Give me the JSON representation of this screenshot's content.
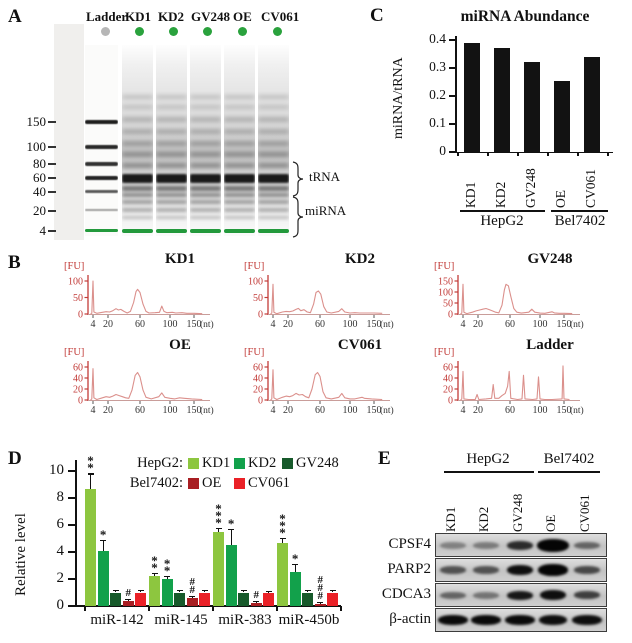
{
  "figure": {
    "colors": {
      "trace_red": "#d98a86",
      "axis_red": "#c23b38",
      "bar_black": "#121212",
      "sample_dot_green": "#2aa23d",
      "ladder_dot_gray": "#b6b6b6",
      "gel_marker_green": "#23993c"
    },
    "panel_a": {
      "label": "A",
      "unit": "[nt]",
      "lane_labels": [
        "Ladder",
        "KD1",
        "KD2",
        "GV248",
        "OE",
        "CV061"
      ],
      "markers": [
        150,
        100,
        80,
        60,
        40,
        20,
        4
      ],
      "trna_label": "tRNA",
      "mirna_label": "miRNA"
    },
    "panel_b": {
      "label": "B",
      "y_unit": "[FU]",
      "x_unit": "(nt)"
    },
    "panel_c": {
      "label": "C"
    },
    "panel_d": {
      "label": "D",
      "legend": {
        "hepg2_label": "HepG2:",
        "bel7402_label": "Bel7402:"
      }
    },
    "panel_e": {
      "label": "E",
      "groups": [
        {
          "name": "HepG2",
          "lanes": [
            "KD1",
            "KD2",
            "GV248"
          ]
        },
        {
          "name": "Bel7402",
          "lanes": [
            "OE",
            "CV061"
          ]
        }
      ],
      "lanes": [
        "KD1",
        "KD2",
        "GV248",
        "OE",
        "CV061"
      ],
      "proteins": [
        {
          "name": "CPSF4",
          "bands": [
            {
              "i": 0.35
            },
            {
              "i": 0.38
            },
            {
              "i": 0.8,
              "h": 9
            },
            {
              "i": 1.0,
              "h": 13,
              "w": 32
            },
            {
              "i": 0.5
            }
          ]
        },
        {
          "name": "PARP2",
          "bands": [
            {
              "i": 0.6,
              "h": 8
            },
            {
              "i": 0.6,
              "h": 8
            },
            {
              "i": 0.95,
              "h": 10
            },
            {
              "i": 1.0,
              "h": 12,
              "w": 30
            },
            {
              "i": 0.65,
              "h": 8
            }
          ]
        },
        {
          "name": "CDCA3",
          "bands": [
            {
              "i": 0.5
            },
            {
              "i": 0.42
            },
            {
              "i": 0.9,
              "h": 9
            },
            {
              "i": 0.95,
              "h": 10
            },
            {
              "i": 0.7,
              "h": 8
            }
          ]
        },
        {
          "name": "β-actin",
          "bands": [
            {
              "i": 0.97,
              "h": 10,
              "w": 30
            },
            {
              "i": 0.97,
              "h": 10,
              "w": 30
            },
            {
              "i": 0.97,
              "h": 10,
              "w": 30
            },
            {
              "i": 0.95,
              "h": 10,
              "w": 28
            },
            {
              "i": 0.95,
              "h": 10,
              "w": 30
            }
          ]
        }
      ]
    }
  },
  "chart_data": [
    {
      "panel": "B",
      "type": "line",
      "title": "KD1",
      "ylabel": "[FU]",
      "xlabel": "(nt)",
      "x_ticks": [
        4,
        20,
        60,
        100,
        150
      ],
      "y_ticks": [
        0,
        50,
        100
      ],
      "ylim": [
        0,
        110
      ],
      "trace": [
        [
          2,
          0
        ],
        [
          3,
          2
        ],
        [
          4,
          100
        ],
        [
          5,
          6
        ],
        [
          8,
          2
        ],
        [
          14,
          5
        ],
        [
          18,
          7
        ],
        [
          22,
          6
        ],
        [
          26,
          10
        ],
        [
          30,
          16
        ],
        [
          33,
          12
        ],
        [
          36,
          14
        ],
        [
          40,
          8
        ],
        [
          44,
          3
        ],
        [
          48,
          8
        ],
        [
          52,
          35
        ],
        [
          55,
          68
        ],
        [
          57,
          75
        ],
        [
          60,
          65
        ],
        [
          64,
          30
        ],
        [
          68,
          8
        ],
        [
          72,
          3
        ],
        [
          80,
          4
        ],
        [
          86,
          5
        ],
        [
          89,
          24
        ],
        [
          92,
          8
        ],
        [
          96,
          4
        ],
        [
          105,
          5
        ],
        [
          112,
          3
        ],
        [
          125,
          4
        ],
        [
          135,
          2
        ],
        [
          150,
          2
        ],
        [
          165,
          1
        ]
      ]
    },
    {
      "panel": "B",
      "type": "line",
      "title": "KD2",
      "ylabel": "[FU]",
      "xlabel": "(nt)",
      "x_ticks": [
        4,
        20,
        60,
        100,
        150
      ],
      "y_ticks": [
        0,
        50,
        100
      ],
      "ylim": [
        0,
        110
      ],
      "trace": [
        [
          2,
          0
        ],
        [
          3,
          3
        ],
        [
          4,
          90
        ],
        [
          5,
          5
        ],
        [
          8,
          1
        ],
        [
          14,
          6
        ],
        [
          18,
          8
        ],
        [
          22,
          7
        ],
        [
          26,
          9
        ],
        [
          30,
          14
        ],
        [
          33,
          17
        ],
        [
          36,
          10
        ],
        [
          40,
          13
        ],
        [
          44,
          6
        ],
        [
          48,
          4
        ],
        [
          52,
          30
        ],
        [
          55,
          65
        ],
        [
          58,
          70
        ],
        [
          61,
          60
        ],
        [
          65,
          22
        ],
        [
          69,
          6
        ],
        [
          75,
          3
        ],
        [
          85,
          8
        ],
        [
          89,
          16
        ],
        [
          93,
          6
        ],
        [
          100,
          3
        ],
        [
          110,
          4
        ],
        [
          120,
          3
        ],
        [
          135,
          3
        ],
        [
          150,
          3
        ],
        [
          165,
          2
        ]
      ]
    },
    {
      "panel": "B",
      "type": "line",
      "title": "GV248",
      "ylabel": "[FU]",
      "xlabel": "(nt)",
      "x_ticks": [
        4,
        20,
        60,
        100,
        150
      ],
      "y_ticks": [
        0,
        50,
        100,
        150
      ],
      "ylim": [
        0,
        158
      ],
      "trace": [
        [
          2,
          0
        ],
        [
          3,
          4
        ],
        [
          4,
          135
        ],
        [
          5,
          8
        ],
        [
          8,
          2
        ],
        [
          14,
          8
        ],
        [
          18,
          14
        ],
        [
          22,
          18
        ],
        [
          26,
          22
        ],
        [
          30,
          25
        ],
        [
          34,
          20
        ],
        [
          38,
          14
        ],
        [
          42,
          8
        ],
        [
          46,
          5
        ],
        [
          50,
          40
        ],
        [
          53,
          110
        ],
        [
          55,
          135
        ],
        [
          58,
          128
        ],
        [
          61,
          80
        ],
        [
          65,
          25
        ],
        [
          69,
          8
        ],
        [
          75,
          4
        ],
        [
          85,
          8
        ],
        [
          89,
          22
        ],
        [
          93,
          8
        ],
        [
          100,
          4
        ],
        [
          110,
          3
        ],
        [
          125,
          10
        ],
        [
          130,
          5
        ],
        [
          140,
          3
        ],
        [
          150,
          3
        ],
        [
          165,
          2
        ]
      ]
    },
    {
      "panel": "B",
      "type": "line",
      "title": "OE",
      "ylabel": "[FU]",
      "xlabel": "(nt)",
      "x_ticks": [
        4,
        20,
        60,
        100,
        150
      ],
      "y_ticks": [
        0,
        20,
        40,
        60
      ],
      "ylim": [
        0,
        66
      ],
      "trace": [
        [
          2,
          0
        ],
        [
          3,
          2
        ],
        [
          4,
          57
        ],
        [
          5,
          4
        ],
        [
          8,
          1
        ],
        [
          14,
          4
        ],
        [
          18,
          6
        ],
        [
          22,
          5
        ],
        [
          26,
          7
        ],
        [
          30,
          10
        ],
        [
          34,
          8
        ],
        [
          38,
          6
        ],
        [
          42,
          4
        ],
        [
          46,
          3
        ],
        [
          50,
          18
        ],
        [
          54,
          45
        ],
        [
          57,
          50
        ],
        [
          60,
          42
        ],
        [
          64,
          18
        ],
        [
          68,
          5
        ],
        [
          75,
          2
        ],
        [
          85,
          6
        ],
        [
          89,
          13
        ],
        [
          93,
          5
        ],
        [
          100,
          3
        ],
        [
          110,
          2
        ],
        [
          120,
          4
        ],
        [
          130,
          3
        ],
        [
          145,
          2
        ],
        [
          165,
          1
        ]
      ]
    },
    {
      "panel": "B",
      "type": "line",
      "title": "CV061",
      "ylabel": "[FU]",
      "xlabel": "(nt)",
      "x_ticks": [
        4,
        20,
        60,
        100,
        150
      ],
      "y_ticks": [
        0,
        20,
        40,
        60
      ],
      "ylim": [
        0,
        66
      ],
      "trace": [
        [
          2,
          0
        ],
        [
          3,
          2
        ],
        [
          4,
          55
        ],
        [
          5,
          4
        ],
        [
          8,
          1
        ],
        [
          14,
          5
        ],
        [
          18,
          7
        ],
        [
          22,
          6
        ],
        [
          26,
          8
        ],
        [
          30,
          12
        ],
        [
          34,
          9
        ],
        [
          38,
          10
        ],
        [
          42,
          6
        ],
        [
          46,
          4
        ],
        [
          50,
          20
        ],
        [
          54,
          46
        ],
        [
          57,
          50
        ],
        [
          60,
          43
        ],
        [
          64,
          15
        ],
        [
          68,
          4
        ],
        [
          75,
          2
        ],
        [
          85,
          5
        ],
        [
          89,
          12
        ],
        [
          93,
          4
        ],
        [
          100,
          2
        ],
        [
          110,
          2
        ],
        [
          125,
          5
        ],
        [
          130,
          3
        ],
        [
          145,
          2
        ],
        [
          165,
          1
        ]
      ]
    },
    {
      "panel": "B",
      "type": "line",
      "title": "Ladder",
      "ylabel": "[FU]",
      "xlabel": "(nt)",
      "x_ticks": [
        4,
        20,
        60,
        100,
        150
      ],
      "y_ticks": [
        0,
        20,
        40,
        60
      ],
      "ylim": [
        0,
        66
      ],
      "trace": [
        [
          2,
          0
        ],
        [
          3,
          2
        ],
        [
          4,
          52
        ],
        [
          5,
          2
        ],
        [
          10,
          1
        ],
        [
          17,
          1
        ],
        [
          19,
          10
        ],
        [
          21,
          1
        ],
        [
          30,
          2
        ],
        [
          37,
          3
        ],
        [
          39,
          28
        ],
        [
          41,
          3
        ],
        [
          46,
          3
        ],
        [
          50,
          8
        ],
        [
          54,
          12
        ],
        [
          57,
          25
        ],
        [
          59,
          52
        ],
        [
          61,
          3
        ],
        [
          70,
          1
        ],
        [
          76,
          2
        ],
        [
          78,
          45
        ],
        [
          80,
          2
        ],
        [
          90,
          1
        ],
        [
          96,
          2
        ],
        [
          98,
          42
        ],
        [
          100,
          2
        ],
        [
          110,
          1
        ],
        [
          125,
          1
        ],
        [
          146,
          2
        ],
        [
          148,
          62
        ],
        [
          150,
          2
        ],
        [
          160,
          1
        ]
      ]
    },
    {
      "panel": "C",
      "type": "bar",
      "title": "miRNA Abundance",
      "ylabel": "miRNA/tRNA",
      "categories": [
        "KD1",
        "KD2",
        "GV248",
        "OE",
        "CV061"
      ],
      "values": [
        0.39,
        0.37,
        0.32,
        0.255,
        0.34
      ],
      "ylim": [
        0,
        0.4
      ],
      "y_ticks": [
        0,
        0.1,
        0.2,
        0.3,
        0.4
      ],
      "y_tick_labels": [
        "0",
        "0.1",
        "0.2",
        "0.3",
        "0.4"
      ],
      "groups": [
        {
          "name": "HepG2",
          "members": [
            "KD1",
            "KD2",
            "GV248"
          ]
        },
        {
          "name": "Bel7402",
          "members": [
            "OE",
            "CV061"
          ]
        }
      ]
    },
    {
      "panel": "D",
      "type": "bar",
      "ylabel": "Relative level",
      "ylim": [
        0,
        10
      ],
      "y_ticks": [
        0,
        2,
        4,
        6,
        8,
        10
      ],
      "categories": [
        "miR-142",
        "miR-145",
        "miR-383",
        "miR-450b"
      ],
      "series": [
        {
          "name": "KD1",
          "cell_line": "HepG2",
          "color": "#8dc63f",
          "values": [
            8.7,
            2.2,
            5.5,
            4.7
          ],
          "errors": [
            1.05,
            0.15,
            0.2,
            0.3
          ],
          "sig": [
            "**",
            "**",
            "***",
            "***"
          ]
        },
        {
          "name": "KD2",
          "cell_line": "HepG2",
          "color": "#12a14b",
          "values": [
            4.05,
            2.0,
            4.5,
            2.55
          ],
          "errors": [
            0.8,
            0.15,
            1.15,
            0.5
          ],
          "sig": [
            "*",
            "**",
            "*",
            "*"
          ]
        },
        {
          "name": "GV248",
          "cell_line": "HepG2",
          "color": "#175a2b",
          "values": [
            1.0,
            1.0,
            1.0,
            1.0
          ],
          "errors": [
            0.12,
            0.12,
            0.1,
            0.1
          ],
          "sig": [
            null,
            null,
            null,
            null
          ]
        },
        {
          "name": "OE",
          "cell_line": "Bel7402",
          "color": "#a81e22",
          "values": [
            0.4,
            0.6,
            0.25,
            0.15
          ],
          "errors": [
            0.08,
            0.1,
            0.06,
            0.05
          ],
          "sig": [
            "#",
            "##",
            "#",
            "###"
          ]
        },
        {
          "name": "CV061",
          "cell_line": "Bel7402",
          "color": "#ea2127",
          "values": [
            1.0,
            1.0,
            0.95,
            1.0
          ],
          "errors": [
            0.1,
            0.12,
            0.1,
            0.12
          ],
          "sig": [
            null,
            null,
            null,
            null
          ]
        }
      ]
    }
  ]
}
